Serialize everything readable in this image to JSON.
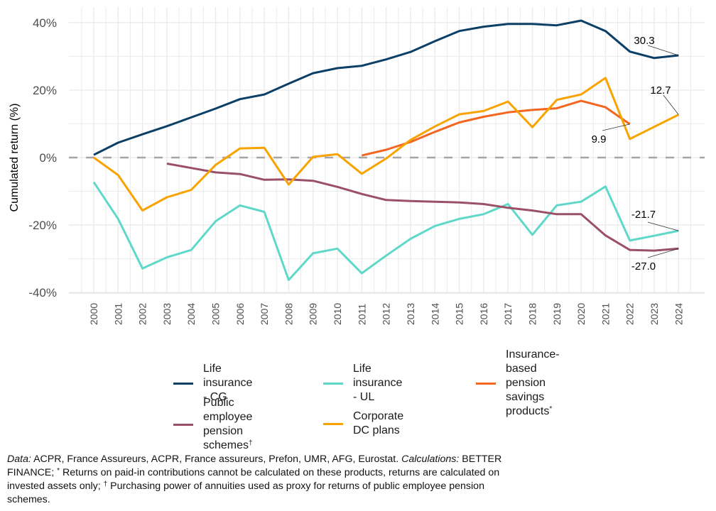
{
  "chart_data": {
    "type": "line",
    "title": "",
    "xlabel": "",
    "ylabel": "Cumulated return  (%)",
    "x": [
      2000,
      2001,
      2002,
      2003,
      2004,
      2005,
      2006,
      2007,
      2008,
      2009,
      2010,
      2011,
      2012,
      2013,
      2014,
      2015,
      2016,
      2017,
      2018,
      2019,
      2020,
      2021,
      2022,
      2023,
      2024
    ],
    "x_tick_labels": [
      "2000",
      "2001",
      "2002",
      "2003",
      "2004",
      "2005",
      "2006",
      "2007",
      "2008",
      "2009",
      "2010",
      "2011",
      "2012",
      "2013",
      "2014",
      "2015",
      "2016",
      "2017",
      "2018",
      "2019",
      "2020",
      "2021",
      "2022",
      "2023",
      "2024"
    ],
    "xlim": [
      1998.98,
      2025.07
    ],
    "ylim": [
      -40.2,
      44.6
    ],
    "y_ticks": [
      -40,
      -20,
      0,
      20,
      40
    ],
    "y_tick_labels": [
      "-40%",
      "-20%",
      "0%",
      "20%",
      "40%"
    ],
    "grid": true,
    "reference_line": {
      "y": 0,
      "style": "dashed",
      "color": "#a6a6a6"
    },
    "legend_position": "bottom",
    "series": [
      {
        "key": "cg",
        "name": "Life insurance - CG",
        "color": "#0b3f66",
        "values": [
          0.8,
          4.4,
          6.9,
          9.3,
          11.9,
          14.5,
          17.3,
          18.7,
          21.9,
          25.0,
          26.5,
          27.2,
          29.1,
          31.3,
          34.5,
          37.5,
          38.8,
          39.6,
          39.6,
          39.2,
          40.6,
          37.5,
          31.4,
          29.5,
          30.3
        ],
        "end_label": "30.3"
      },
      {
        "key": "ul",
        "name": "Life insurance - UL",
        "color": "#5fd8c9",
        "values": [
          -7.3,
          -18.2,
          -32.9,
          -29.6,
          -27.4,
          -18.9,
          -14.2,
          -16.1,
          -36.3,
          -28.4,
          -27.0,
          -34.3,
          -29.1,
          -24.1,
          -20.3,
          -18.2,
          -16.8,
          -13.8,
          -22.9,
          -14.2,
          -13.1,
          -8.6,
          -24.6,
          -23.2,
          -21.7
        ],
        "end_label": "-21.7"
      },
      {
        "key": "ibp",
        "name": "Insurance-based pension savings products",
        "legend_lines": [
          "Insurance-based",
          "pension savings",
          "products"
        ],
        "legend_sup": "*",
        "color": "#f4661f",
        "values": [
          null,
          null,
          null,
          null,
          null,
          null,
          null,
          null,
          null,
          null,
          null,
          0.6,
          2.3,
          4.6,
          7.6,
          10.4,
          12.1,
          13.4,
          14.1,
          14.6,
          16.8,
          14.9,
          9.9,
          null,
          null
        ],
        "end_label": "9.9"
      },
      {
        "key": "pub",
        "name": "Public employee pension schemes",
        "legend_lines": [
          "Public employee",
          "pension",
          "schemes"
        ],
        "legend_sup": "†",
        "color": "#9b5068",
        "values": [
          null,
          null,
          null,
          -1.8,
          -3.1,
          -4.4,
          -4.9,
          -6.6,
          -6.5,
          -6.9,
          -8.7,
          -10.8,
          -12.6,
          -12.9,
          -13.1,
          -13.3,
          -13.8,
          -14.9,
          -15.7,
          -16.8,
          -16.8,
          -23.1,
          -27.4,
          -27.6,
          -27.0
        ],
        "end_label": "-27.0"
      },
      {
        "key": "dc",
        "name": "Corporate DC plans",
        "color": "#f8a300",
        "values": [
          0.0,
          -5.2,
          -15.7,
          -11.8,
          -9.6,
          -2.2,
          2.7,
          2.9,
          -8.0,
          0.2,
          1.0,
          -4.8,
          -0.3,
          5.2,
          9.2,
          12.8,
          13.8,
          16.6,
          9.0,
          17.1,
          18.7,
          23.6,
          5.5,
          9.1,
          12.7
        ],
        "end_label": "12.7"
      }
    ]
  },
  "caption": {
    "data_label": "Data:",
    "data_text": " ACPR, France Assureurs, ACPR, France assureurs, Prefon, UMR, AFG, Eurostat. ",
    "calc_label": "Calculations:",
    "calc_text": " BETTER FINANCE; ",
    "note1_sup": "*",
    "note1_text": " Returns on paid-in contributions cannot be calculated on these products, returns are calculated on invested assets only; ",
    "note2_sup": "†",
    "note2_text": " Purchasing power of annuities used as proxy for returns of public employee pension schemes."
  }
}
